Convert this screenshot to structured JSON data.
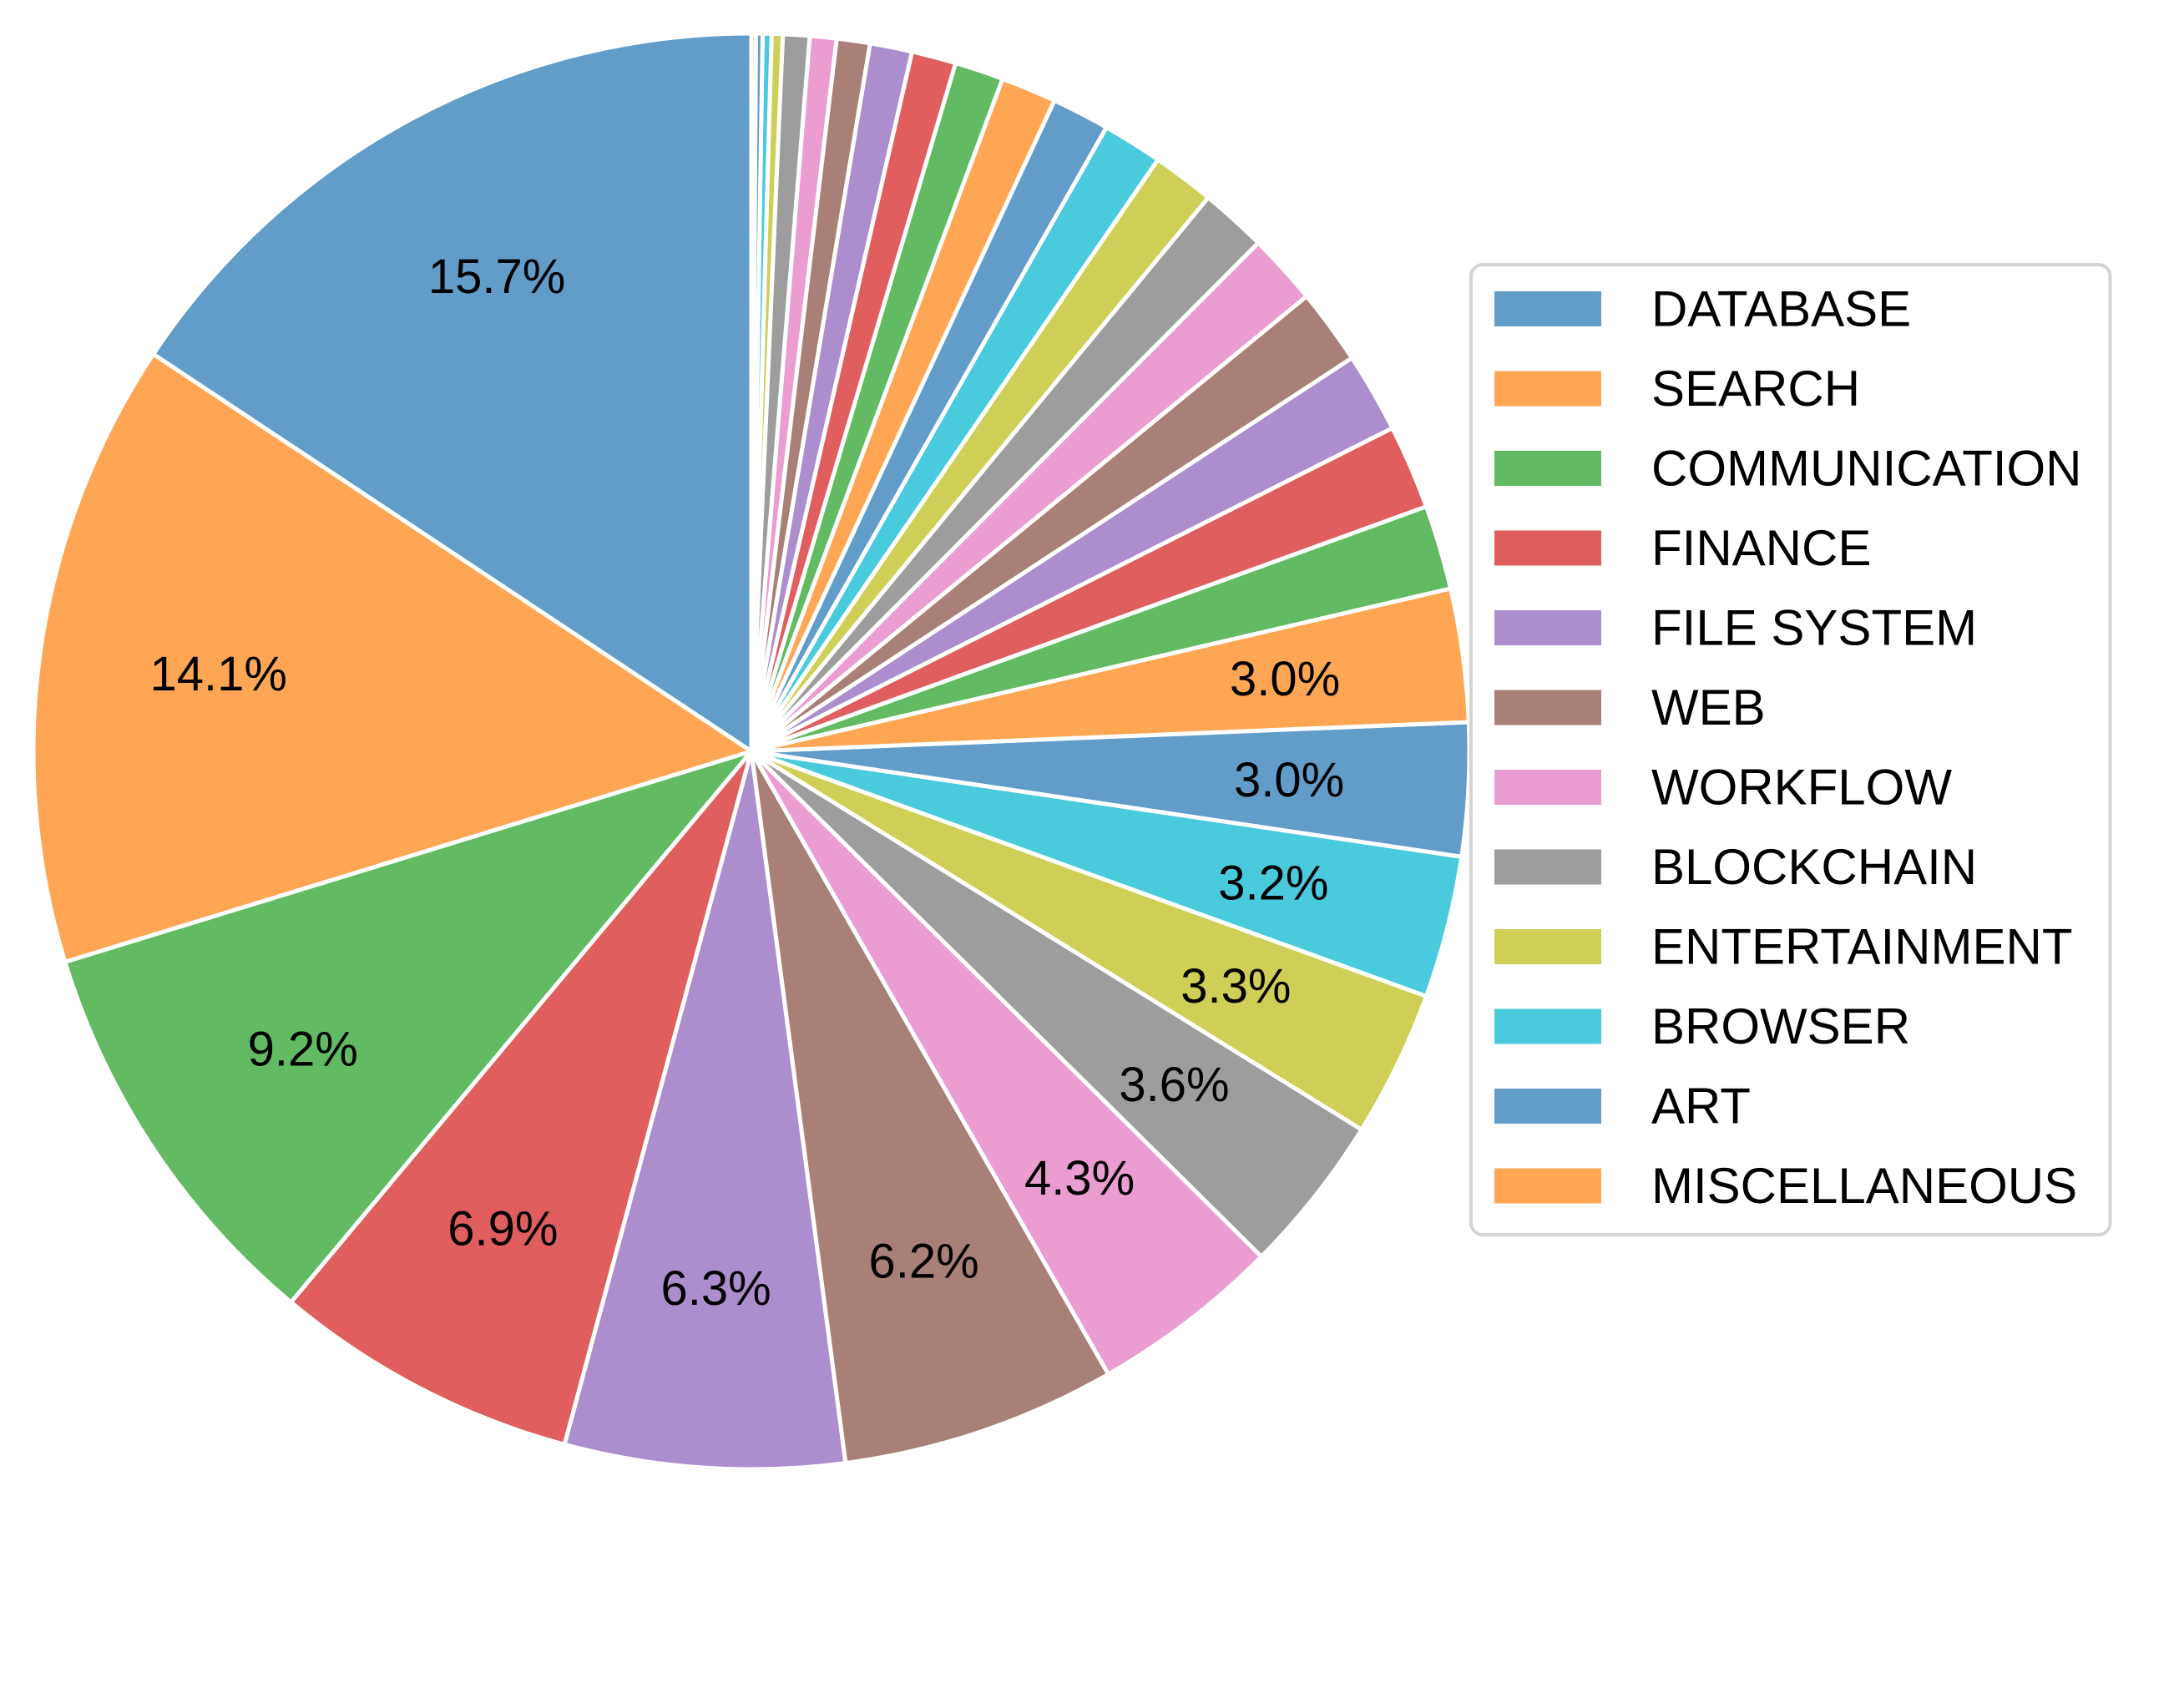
{
  "chart_data": {
    "type": "pie",
    "slices": [
      {
        "label": "DATABASE",
        "value": 15.7,
        "show_pct": true,
        "color": "#4c8fc2"
      },
      {
        "label": "SEARCH",
        "value": 14.1,
        "show_pct": true,
        "color": "#ff9a3d"
      },
      {
        "label": "COMMUNICATION",
        "value": 9.2,
        "show_pct": true,
        "color": "#4cb04c"
      },
      {
        "label": "FINANCE",
        "value": 6.9,
        "show_pct": true,
        "color": "#dc4848"
      },
      {
        "label": "FILE SYSTEM",
        "value": 6.3,
        "show_pct": true,
        "color": "#a07ec8"
      },
      {
        "label": "WEB",
        "value": 6.2,
        "show_pct": true,
        "color": "#9c6e64"
      },
      {
        "label": "WORKFLOW",
        "value": 4.3,
        "show_pct": true,
        "color": "#e890cc"
      },
      {
        "label": "BLOCKCHAIN",
        "value": 3.6,
        "show_pct": true,
        "color": "#909090"
      },
      {
        "label": "ENTERTAINMENT",
        "value": 3.3,
        "show_pct": true,
        "color": "#c8c840"
      },
      {
        "label": "BROWSER",
        "value": 3.2,
        "show_pct": true,
        "color": "#30c4d8"
      },
      {
        "label": "ART",
        "value": 3.0,
        "show_pct": true,
        "color": "#4c8fc2"
      },
      {
        "label": "MISCELLANEOUS",
        "value": 3.0,
        "show_pct": true,
        "color": "#ff9a3d"
      },
      {
        "label": "",
        "value": 1.9,
        "show_pct": false,
        "color": "#4cb04c"
      },
      {
        "label": "",
        "value": 1.9,
        "show_pct": false,
        "color": "#dc4848"
      },
      {
        "label": "",
        "value": 1.8,
        "show_pct": false,
        "color": "#a07ec8"
      },
      {
        "label": "",
        "value": 1.7,
        "show_pct": false,
        "color": "#9c6e64"
      },
      {
        "label": "",
        "value": 1.6,
        "show_pct": false,
        "color": "#e890cc"
      },
      {
        "label": "",
        "value": 1.5,
        "show_pct": false,
        "color": "#909090"
      },
      {
        "label": "",
        "value": 1.4,
        "show_pct": false,
        "color": "#c8c840"
      },
      {
        "label": "",
        "value": 1.35,
        "show_pct": false,
        "color": "#30c4d8"
      },
      {
        "label": "",
        "value": 1.3,
        "show_pct": false,
        "color": "#4c8fc2"
      },
      {
        "label": "",
        "value": 1.25,
        "show_pct": false,
        "color": "#ff9a3d"
      },
      {
        "label": "",
        "value": 1.1,
        "show_pct": false,
        "color": "#4cb04c"
      },
      {
        "label": "",
        "value": 1.0,
        "show_pct": false,
        "color": "#dc4848"
      },
      {
        "label": "",
        "value": 0.95,
        "show_pct": false,
        "color": "#a07ec8"
      },
      {
        "label": "",
        "value": 0.75,
        "show_pct": false,
        "color": "#9c6e64"
      },
      {
        "label": "",
        "value": 0.6,
        "show_pct": false,
        "color": "#e890cc"
      },
      {
        "label": "",
        "value": 0.6,
        "show_pct": false,
        "color": "#909090"
      },
      {
        "label": "",
        "value": 0.25,
        "show_pct": false,
        "color": "#c8c840"
      },
      {
        "label": "",
        "value": 0.2,
        "show_pct": false,
        "color": "#30c4d8"
      },
      {
        "label": "",
        "value": 0.15,
        "show_pct": false,
        "color": "#4c8fc2"
      },
      {
        "label": "",
        "value": 0.1,
        "show_pct": false,
        "color": "#ff9a3d"
      }
    ],
    "start_angle": "12 o'clock",
    "direction": "counterclockwise",
    "legend": {
      "placement": "right",
      "entries": [
        "DATABASE",
        "SEARCH",
        "COMMUNICATION",
        "FINANCE",
        "FILE SYSTEM",
        "WEB",
        "WORKFLOW",
        "BLOCKCHAIN",
        "ENTERTAINMENT",
        "BROWSER",
        "ART",
        "MISCELLANEOUS"
      ]
    },
    "title": "",
    "grid": false
  }
}
